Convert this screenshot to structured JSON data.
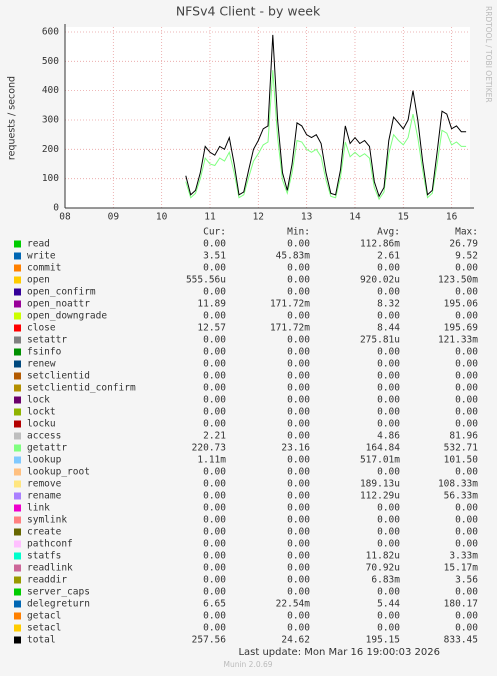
{
  "chart_data": {
    "type": "line",
    "title": "NFSv4 Client - by week",
    "y_label": "requests / second",
    "side_label": "RRDTOOL / TOBI OETIKER",
    "legend_headers": [
      "Cur:",
      "Min:",
      "Avg:",
      "Max:"
    ],
    "last_update": "Last update: Mon Mar 16 19:00:03 2026",
    "footer": "Munin 2.0.69",
    "xlim": [
      8,
      16.38
    ],
    "xticks": [
      {
        "value": 8,
        "label": "08"
      },
      {
        "value": 9,
        "label": "09"
      },
      10,
      11,
      12,
      13,
      14,
      15,
      16
    ],
    "ylim": [
      0,
      617
    ],
    "yticks": [
      0,
      100,
      200,
      300,
      400,
      500,
      600
    ],
    "grid": true,
    "x": [
      10.5,
      10.6,
      10.7,
      10.8,
      10.9,
      11.0,
      11.1,
      11.2,
      11.3,
      11.4,
      11.5,
      11.6,
      11.7,
      11.8,
      11.9,
      12.0,
      12.1,
      12.2,
      12.3,
      12.4,
      12.5,
      12.6,
      12.7,
      12.8,
      12.9,
      13.0,
      13.1,
      13.2,
      13.3,
      13.4,
      13.5,
      13.6,
      13.7,
      13.8,
      13.9,
      14.0,
      14.1,
      14.2,
      14.3,
      14.4,
      14.5,
      14.6,
      14.7,
      14.8,
      14.9,
      15.0,
      15.1,
      15.2,
      15.3,
      15.4,
      15.5,
      15.6,
      15.7,
      15.8,
      15.9,
      16.0,
      16.1,
      16.2,
      16.3
    ],
    "series": [
      {
        "name": "read",
        "color": "#00cc00",
        "cur": "0.00",
        "min": "0.00",
        "avg": "112.86m",
        "max": "26.79"
      },
      {
        "name": "write",
        "color": "#0066b3",
        "cur": "3.51",
        "min": "45.83m",
        "avg": "2.61",
        "max": "9.52"
      },
      {
        "name": "commit",
        "color": "#ff8000",
        "cur": "0.00",
        "min": "0.00",
        "avg": "0.00",
        "max": "0.00"
      },
      {
        "name": "open",
        "color": "#ffcc00",
        "cur": "555.56u",
        "min": "0.00",
        "avg": "920.02u",
        "max": "123.50m"
      },
      {
        "name": "open_confirm",
        "color": "#330099",
        "cur": "0.00",
        "min": "0.00",
        "avg": "0.00",
        "max": "0.00"
      },
      {
        "name": "open_noattr",
        "color": "#990099",
        "cur": "11.89",
        "min": "171.72m",
        "avg": "8.32",
        "max": "195.06"
      },
      {
        "name": "open_downgrade",
        "color": "#ccff00",
        "cur": "0.00",
        "min": "0.00",
        "avg": "0.00",
        "max": "0.00"
      },
      {
        "name": "close",
        "color": "#ff0000",
        "cur": "12.57",
        "min": "171.72m",
        "avg": "8.44",
        "max": "195.69"
      },
      {
        "name": "setattr",
        "color": "#808080",
        "cur": "0.00",
        "min": "0.00",
        "avg": "275.81u",
        "max": "121.33m"
      },
      {
        "name": "fsinfo",
        "color": "#008f00",
        "cur": "0.00",
        "min": "0.00",
        "avg": "0.00",
        "max": "0.00"
      },
      {
        "name": "renew",
        "color": "#00487d",
        "cur": "0.00",
        "min": "0.00",
        "avg": "0.00",
        "max": "0.00"
      },
      {
        "name": "setclientid",
        "color": "#b35a00",
        "cur": "0.00",
        "min": "0.00",
        "avg": "0.00",
        "max": "0.00"
      },
      {
        "name": "setclientid_confirm",
        "color": "#b38f00",
        "cur": "0.00",
        "min": "0.00",
        "avg": "0.00",
        "max": "0.00"
      },
      {
        "name": "lock",
        "color": "#6b006b",
        "cur": "0.00",
        "min": "0.00",
        "avg": "0.00",
        "max": "0.00"
      },
      {
        "name": "lockt",
        "color": "#8fb300",
        "cur": "0.00",
        "min": "0.00",
        "avg": "0.00",
        "max": "0.00"
      },
      {
        "name": "locku",
        "color": "#b30000",
        "cur": "0.00",
        "min": "0.00",
        "avg": "0.00",
        "max": "0.00"
      },
      {
        "name": "access",
        "color": "#bebebe",
        "cur": "2.21",
        "min": "0.00",
        "avg": "4.86",
        "max": "81.96"
      },
      {
        "name": "getattr",
        "color": "#80ff80",
        "cur": "220.73",
        "min": "23.16",
        "avg": "164.84",
        "max": "532.71",
        "values": [
          90,
          35,
          50,
          100,
          170,
          150,
          145,
          170,
          160,
          190,
          120,
          35,
          45,
          105,
          160,
          185,
          215,
          225,
          470,
          240,
          95,
          50,
          120,
          230,
          225,
          200,
          190,
          200,
          175,
          95,
          40,
          35,
          105,
          225,
          175,
          190,
          175,
          185,
          170,
          70,
          30,
          55,
          185,
          250,
          230,
          215,
          240,
          320,
          240,
          130,
          35,
          50,
          150,
          265,
          255,
          215,
          225,
          210,
          210
        ]
      },
      {
        "name": "lookup",
        "color": "#80c9ff",
        "cur": "1.11m",
        "min": "0.00",
        "avg": "517.01m",
        "max": "101.50"
      },
      {
        "name": "lookup_root",
        "color": "#ffc080",
        "cur": "0.00",
        "min": "0.00",
        "avg": "0.00",
        "max": "0.00"
      },
      {
        "name": "remove",
        "color": "#ffe680",
        "cur": "0.00",
        "min": "0.00",
        "avg": "189.13u",
        "max": "108.33m"
      },
      {
        "name": "rename",
        "color": "#aa80ff",
        "cur": "0.00",
        "min": "0.00",
        "avg": "112.29u",
        "max": "56.33m"
      },
      {
        "name": "link",
        "color": "#ee00cc",
        "cur": "0.00",
        "min": "0.00",
        "avg": "0.00",
        "max": "0.00"
      },
      {
        "name": "symlink",
        "color": "#ff8080",
        "cur": "0.00",
        "min": "0.00",
        "avg": "0.00",
        "max": "0.00"
      },
      {
        "name": "create",
        "color": "#666600",
        "cur": "0.00",
        "min": "0.00",
        "avg": "0.00",
        "max": "0.00"
      },
      {
        "name": "pathconf",
        "color": "#ffbfff",
        "cur": "0.00",
        "min": "0.00",
        "avg": "0.00",
        "max": "0.00"
      },
      {
        "name": "statfs",
        "color": "#00ffcc",
        "cur": "0.00",
        "min": "0.00",
        "avg": "11.82u",
        "max": "3.33m"
      },
      {
        "name": "readlink",
        "color": "#cc6699",
        "cur": "0.00",
        "min": "0.00",
        "avg": "70.92u",
        "max": "15.17m"
      },
      {
        "name": "readdir",
        "color": "#999900",
        "cur": "0.00",
        "min": "0.00",
        "avg": "6.83m",
        "max": "3.56"
      },
      {
        "name": "server_caps",
        "color": "#00cc00",
        "cur": "0.00",
        "min": "0.00",
        "avg": "0.00",
        "max": "0.00"
      },
      {
        "name": "delegreturn",
        "color": "#0066b3",
        "cur": "6.65",
        "min": "22.54m",
        "avg": "5.44",
        "max": "180.17"
      },
      {
        "name": "getacl",
        "color": "#ff8000",
        "cur": "0.00",
        "min": "0.00",
        "avg": "0.00",
        "max": "0.00"
      },
      {
        "name": "setacl",
        "color": "#ffcc00",
        "cur": "0.00",
        "min": "0.00",
        "avg": "0.00",
        "max": "0.00"
      },
      {
        "name": "total",
        "color": "#000000",
        "cur": "257.56",
        "min": "24.62",
        "avg": "195.15",
        "max": "833.45",
        "values": [
          110,
          45,
          60,
          120,
          210,
          190,
          180,
          210,
          200,
          240,
          150,
          45,
          55,
          130,
          200,
          230,
          270,
          280,
          590,
          300,
          120,
          60,
          150,
          290,
          280,
          250,
          240,
          250,
          220,
          120,
          50,
          45,
          130,
          280,
          220,
          240,
          220,
          230,
          210,
          90,
          40,
          70,
          230,
          310,
          290,
          270,
          300,
          400,
          300,
          160,
          45,
          60,
          190,
          330,
          320,
          270,
          280,
          260,
          260
        ]
      }
    ]
  }
}
